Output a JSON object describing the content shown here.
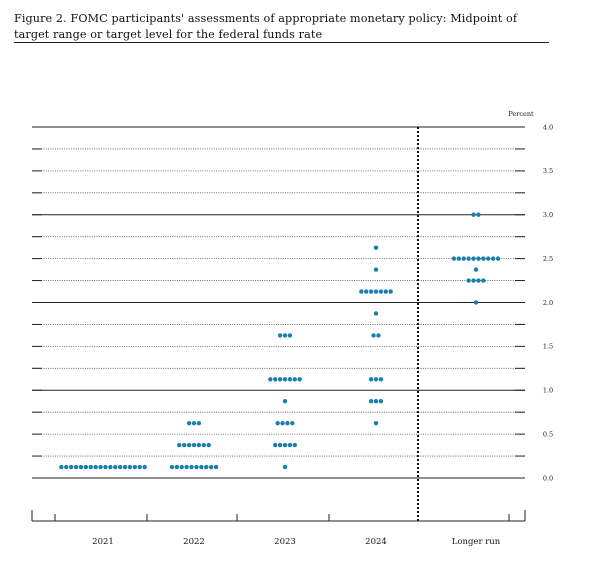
{
  "figure": {
    "caption": "Figure 2. FOMC participants' assessments of appropriate monetary policy: Midpoint of target range or target level for the federal funds rate"
  },
  "chart_data": {
    "type": "scatter",
    "subtype": "dot-plot",
    "title": "Figure 2. FOMC participants' assessments of appropriate monetary policy: Midpoint of target range or target level for the federal funds rate",
    "ylabel": "Percent",
    "ylim": [
      0,
      4.0
    ],
    "yticks": [
      0.0,
      0.5,
      1.0,
      1.5,
      2.0,
      2.5,
      3.0,
      3.5,
      4.0
    ],
    "ytick_labels": [
      "0.0",
      "0.5",
      "1.0",
      "1.5",
      "2.0",
      "2.5",
      "3.0",
      "3.5",
      "4.0"
    ],
    "categories": [
      "2021",
      "2022",
      "2023",
      "2024",
      "Longer run"
    ],
    "dot_color": "#1a7fae",
    "dots": {
      "2021": [
        {
          "value": 0.125,
          "count": 18
        }
      ],
      "2022": [
        {
          "value": 0.125,
          "count": 10
        },
        {
          "value": 0.375,
          "count": 7
        },
        {
          "value": 0.625,
          "count": 3
        }
      ],
      "2023": [
        {
          "value": 0.125,
          "count": 1
        },
        {
          "value": 0.375,
          "count": 5
        },
        {
          "value": 0.625,
          "count": 4
        },
        {
          "value": 0.875,
          "count": 1
        },
        {
          "value": 1.125,
          "count": 7
        },
        {
          "value": 1.625,
          "count": 3
        }
      ],
      "2024": [
        {
          "value": 0.625,
          "count": 1
        },
        {
          "value": 0.875,
          "count": 3
        },
        {
          "value": 1.125,
          "count": 3
        },
        {
          "value": 1.625,
          "count": 2
        },
        {
          "value": 1.875,
          "count": 1
        },
        {
          "value": 2.125,
          "count": 7
        },
        {
          "value": 2.375,
          "count": 1
        },
        {
          "value": 2.625,
          "count": 1
        }
      ],
      "Longer run": [
        {
          "value": 2.0,
          "count": 1
        },
        {
          "value": 2.25,
          "count": 4
        },
        {
          "value": 2.375,
          "count": 1
        },
        {
          "value": 2.5,
          "count": 10
        },
        {
          "value": 3.0,
          "count": 2
        }
      ]
    },
    "grid": true,
    "divider_before": "Longer run"
  }
}
